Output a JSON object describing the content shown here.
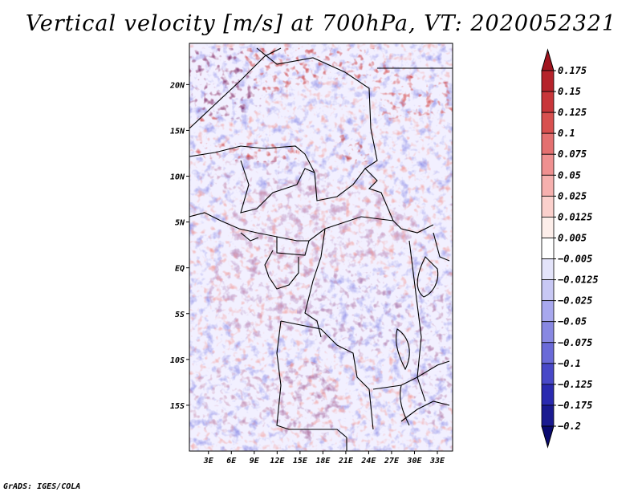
{
  "title": "Vertical velocity [m/s] at 700hPa, VT: 2020052321",
  "credit": "GrADS: IGES/COLA",
  "map": {
    "lat_labels": [
      "20N",
      "15N",
      "10N",
      "5N",
      "EQ",
      "5S",
      "10S",
      "15S"
    ],
    "lat_values": [
      20,
      15,
      10,
      5,
      0,
      -5,
      -10,
      -15
    ],
    "lon_labels": [
      "3E",
      "6E",
      "9E",
      "12E",
      "15E",
      "18E",
      "21E",
      "24E",
      "27E",
      "30E",
      "33E"
    ],
    "lon_values": [
      3,
      6,
      9,
      12,
      15,
      18,
      21,
      24,
      27,
      30,
      33
    ],
    "lat_range": [
      -20,
      24.5
    ],
    "lon_range": [
      0.5,
      35
    ]
  },
  "colorbar": {
    "labels": [
      "0.175",
      "0.15",
      "0.125",
      "0.1",
      "0.075",
      "0.05",
      "0.025",
      "0.0125",
      "0.005",
      "−0.005",
      "−0.0125",
      "−0.025",
      "−0.05",
      "−0.075",
      "−0.1",
      "−0.125",
      "−0.175",
      "−0.2"
    ],
    "colors": [
      "#a0141e",
      "#b5232b",
      "#c8363a",
      "#d8504f",
      "#e47070",
      "#ef9090",
      "#f6b0ae",
      "#fbd0cc",
      "#fdeeea",
      "#ffffff",
      "#e4e4fa",
      "#c8c8f4",
      "#a8a8ee",
      "#8888e2",
      "#6a6ad8",
      "#4848c8",
      "#2a2ab0",
      "#1a1a90",
      "#0a0a70"
    ]
  }
}
